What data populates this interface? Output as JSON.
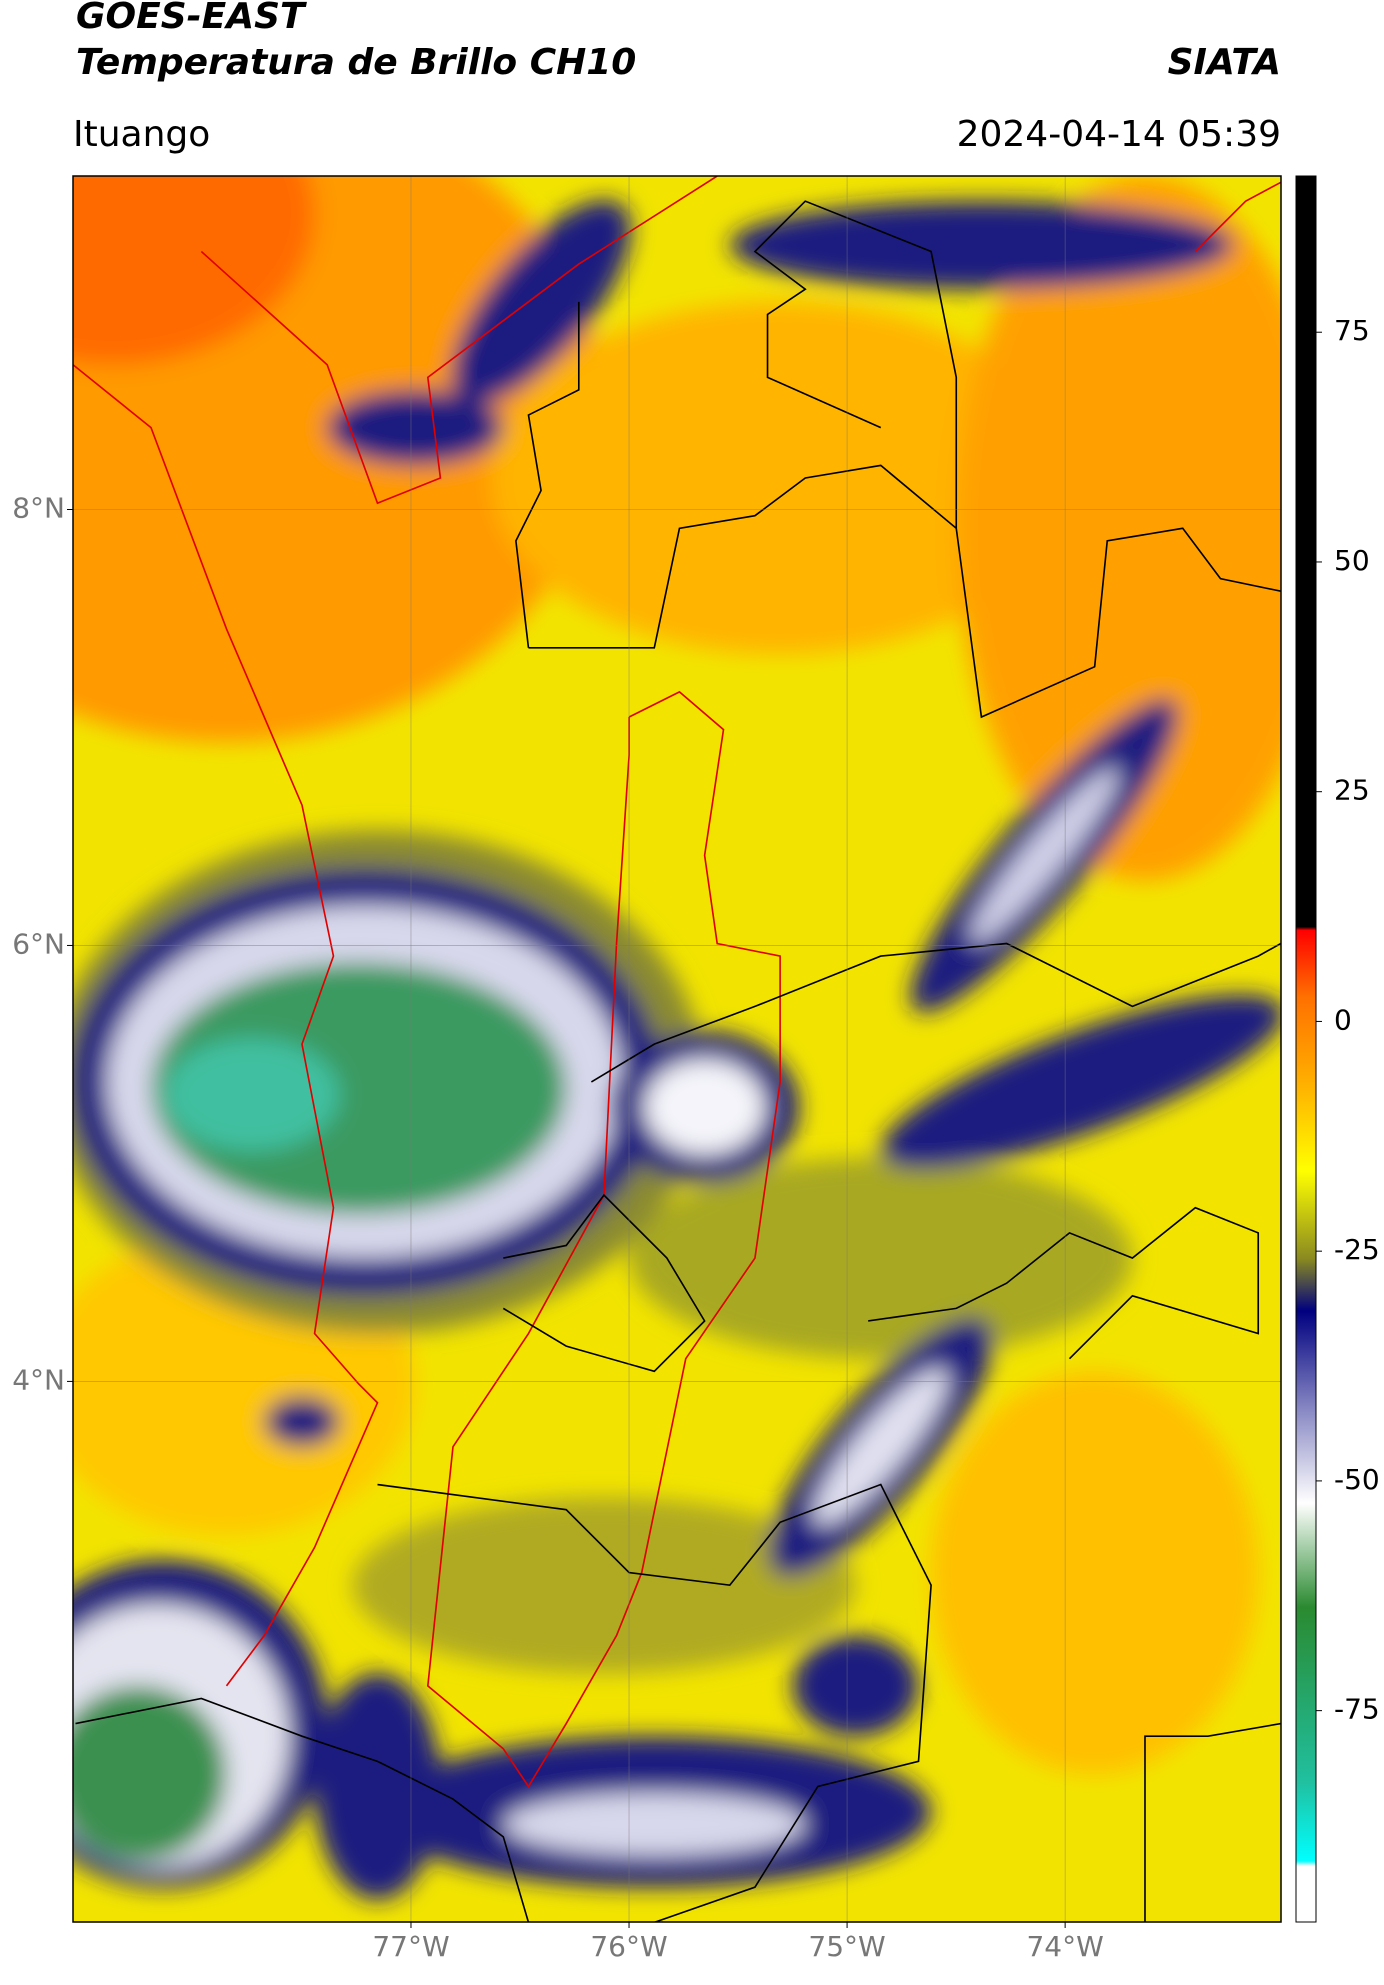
{
  "header": {
    "title": "GOES-EAST",
    "subtitle": "Temperatura de Brillo CH10",
    "source": "SIATA",
    "location": "Ituango",
    "timestamp": "2024-04-14 05:39"
  },
  "map": {
    "lonlim": [
      -78.55,
      -73.01
    ],
    "latlim": [
      1.52,
      9.53
    ],
    "lonticks": [
      {
        "value": -77,
        "label": "77°W"
      },
      {
        "value": -76,
        "label": "76°W"
      },
      {
        "value": -75,
        "label": "75°W"
      },
      {
        "value": -74,
        "label": "74°W"
      }
    ],
    "latticks": [
      {
        "value": 8,
        "label": "8°N"
      },
      {
        "value": 6,
        "label": "6°N"
      },
      {
        "value": 4,
        "label": "4°N"
      }
    ],
    "grid": true
  },
  "colorbar": {
    "range": [
      -98,
      92
    ],
    "ticks": [
      75,
      50,
      25,
      0,
      -25,
      -50,
      -75
    ]
  }
}
